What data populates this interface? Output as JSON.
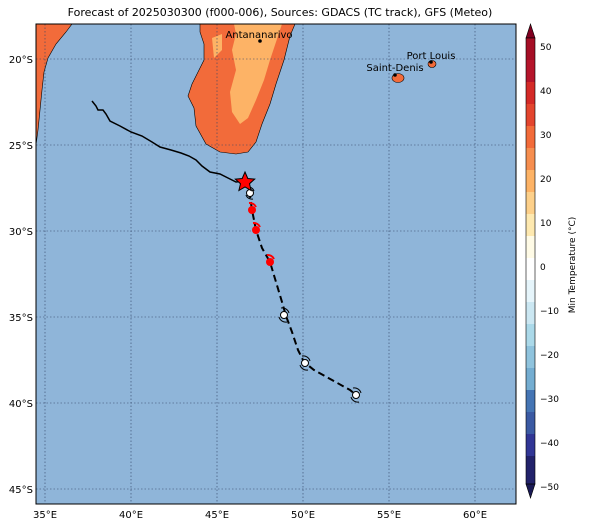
{
  "title": "Forecast of 2025030300 (f000-006), Sources: GDACS (TC track), GFS (Meteo)",
  "map": {
    "lon_ticks": [
      "35°E",
      "40°E",
      "45°E",
      "50°E",
      "55°E",
      "60°E"
    ],
    "lat_ticks": [
      "20°S",
      "25°S",
      "30°S",
      "35°S",
      "40°S",
      "45°S"
    ],
    "colors": {
      "ocean": "#8fb5d9",
      "land_warm": "#f26b3a",
      "land_mild": "#fdb366",
      "grid": "#334466"
    },
    "places": [
      {
        "name": "Antananarivo"
      },
      {
        "name": "Port Louis"
      },
      {
        "name": "Saint-Denis"
      }
    ]
  },
  "track": {
    "past_color": "#000000",
    "forecast_style": "dashed",
    "current_marker": "red-star",
    "cyclone_symbols": "hurricane-icon"
  },
  "colorbar": {
    "label": "Min Temperature (°C)",
    "ticks": [
      "50",
      "40",
      "30",
      "20",
      "10",
      "0",
      "−10",
      "−20",
      "−30",
      "−40",
      "−50"
    ],
    "colors": [
      "#800020",
      "#b5152b",
      "#d73027",
      "#f46d43",
      "#fdae61",
      "#fee090",
      "#ffffff",
      "#e0f3f8",
      "#abd9e9",
      "#74add1",
      "#4575b4",
      "#313695",
      "#22226a"
    ]
  }
}
